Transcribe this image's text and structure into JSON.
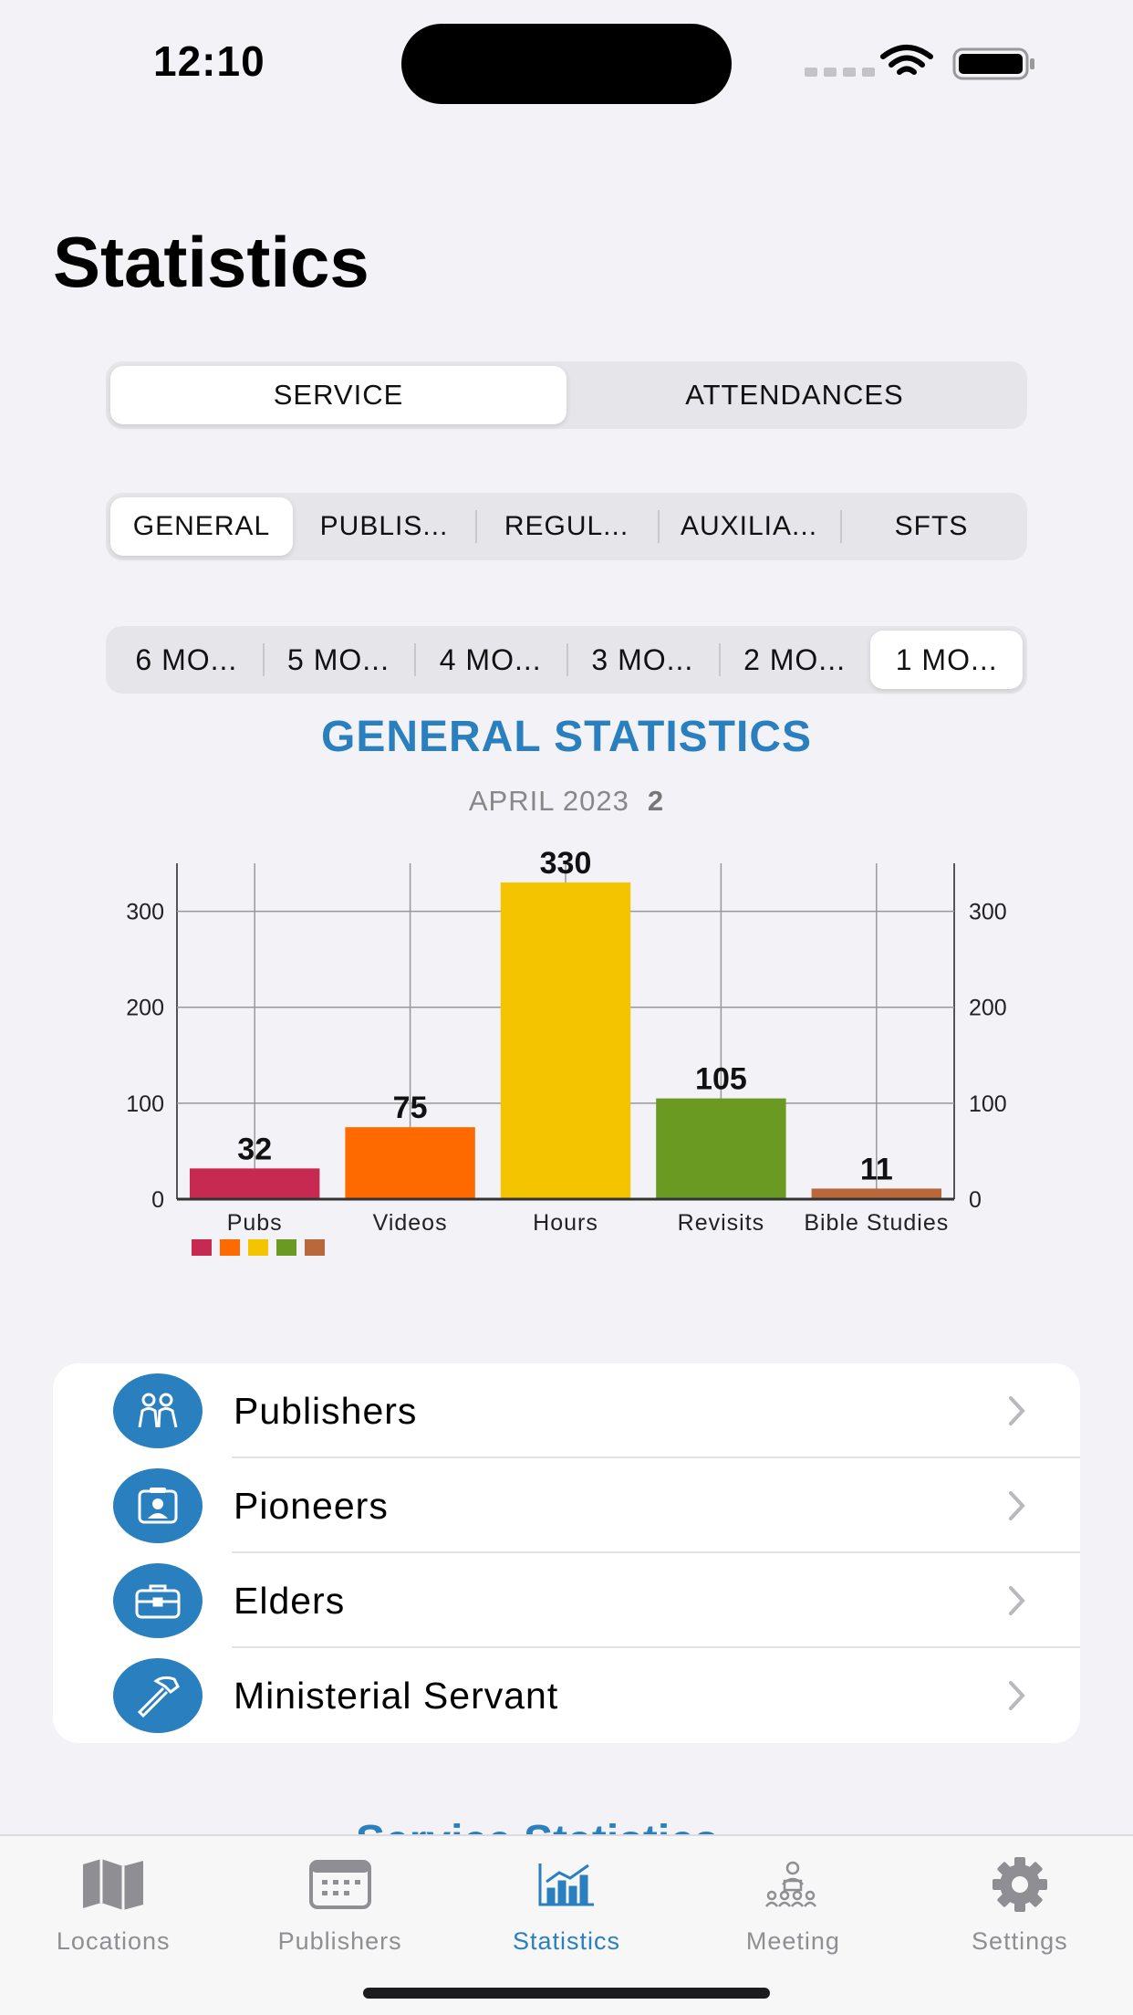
{
  "status_bar": {
    "time": "12:10"
  },
  "page_title": "Statistics",
  "segments": {
    "main": {
      "items": [
        "SERVICE",
        "ATTENDANCES"
      ],
      "selected": 0
    },
    "category": {
      "items": [
        "GENERAL",
        "PUBLIS...",
        "REGUL...",
        "AUXILIA...",
        "SFTS"
      ],
      "selected": 0
    },
    "period": {
      "items": [
        "6 MO...",
        "5 MO...",
        "4 MO...",
        "3 MO...",
        "2 MO...",
        "1 MO..."
      ],
      "selected": 5
    }
  },
  "chart_heading": {
    "title": "GENERAL STATISTICS",
    "month": "APRIL 2023",
    "count": "2"
  },
  "chart_data": {
    "type": "bar",
    "categories": [
      "Pubs",
      "Videos",
      "Hours",
      "Revisits",
      "Bible Studies"
    ],
    "values": [
      32,
      75,
      330,
      105,
      11
    ],
    "colors": [
      "#c62a50",
      "#ff6a00",
      "#f4c400",
      "#6a9a22",
      "#b8683a"
    ],
    "ylim": [
      0,
      350
    ],
    "yticks": [
      0,
      100,
      200,
      300
    ],
    "grid": true,
    "legend": "bottom-left"
  },
  "list": {
    "items": [
      {
        "label": "Publishers",
        "icon": "people-icon"
      },
      {
        "label": "Pioneers",
        "icon": "id-card-icon"
      },
      {
        "label": "Elders",
        "icon": "briefcase-icon"
      },
      {
        "label": "Ministerial Servant",
        "icon": "hammer-icon"
      }
    ]
  },
  "peek_title": "Service Statistics",
  "tabbar": {
    "items": [
      {
        "label": "Locations",
        "icon": "map-icon"
      },
      {
        "label": "Publishers",
        "icon": "calendar-icon"
      },
      {
        "label": "Statistics",
        "icon": "chart-icon"
      },
      {
        "label": "Meeting",
        "icon": "meeting-icon"
      },
      {
        "label": "Settings",
        "icon": "gear-icon"
      }
    ],
    "active": 2,
    "accent": "#2a7fbe"
  }
}
